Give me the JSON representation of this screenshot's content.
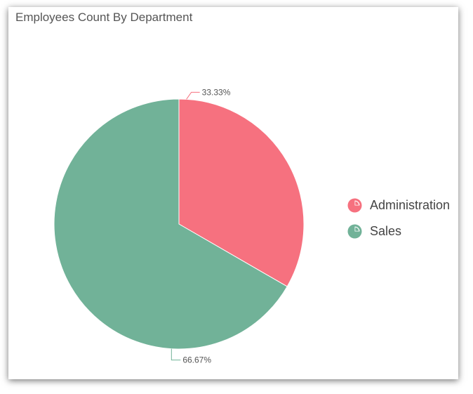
{
  "chart_data": {
    "type": "pie",
    "title": "Employees Count By Department",
    "categories": [
      "Administration",
      "Sales"
    ],
    "values": [
      33.33,
      66.67
    ],
    "data_labels": [
      "33.33%",
      "66.67%"
    ],
    "colors": [
      "#f6717f",
      "#71b298"
    ],
    "legend_position": "right"
  }
}
